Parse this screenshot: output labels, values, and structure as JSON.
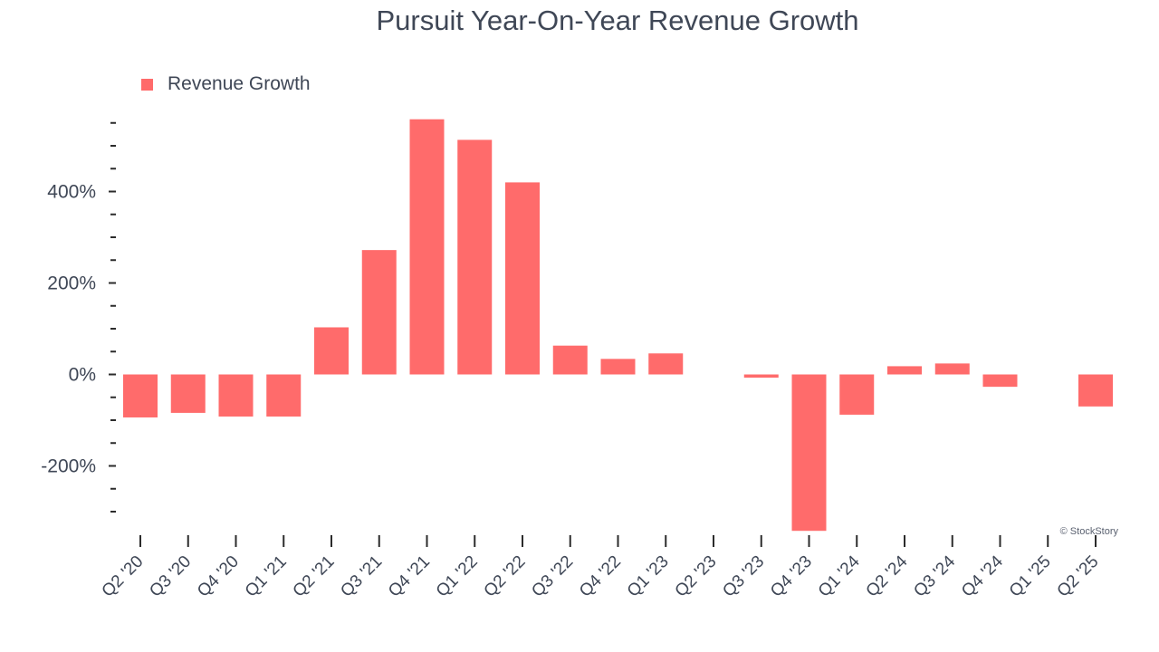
{
  "chart_data": {
    "type": "bar",
    "title": "Pursuit Year-On-Year Revenue Growth",
    "legend": [
      "Revenue Growth"
    ],
    "legend_position": "top-left",
    "xlabel": "",
    "ylabel": "",
    "ylim": [
      -345,
      560
    ],
    "y_ticks": [
      -200,
      0,
      200,
      400
    ],
    "y_tick_labels": [
      "-200%",
      "0%",
      "200%",
      "400%"
    ],
    "y_minor_step": 50,
    "grid": false,
    "categories": [
      "Q2 '20",
      "Q3 '20",
      "Q4 '20",
      "Q1 '21",
      "Q2 '21",
      "Q3 '21",
      "Q4 '21",
      "Q1 '22",
      "Q2 '22",
      "Q3 '22",
      "Q4 '22",
      "Q1 '23",
      "Q2 '23",
      "Q3 '23",
      "Q4 '23",
      "Q1 '24",
      "Q2 '24",
      "Q3 '24",
      "Q4 '24",
      "Q1 '25",
      "Q2 '25"
    ],
    "series": [
      {
        "name": "Revenue Growth",
        "values": [
          -94,
          -84,
          -92,
          -92,
          103,
          272,
          558,
          513,
          420,
          63,
          34,
          46,
          null,
          -7,
          -342,
          -88,
          18,
          24,
          -27,
          null,
          -70
        ]
      }
    ],
    "color": "#ff6b6b",
    "credit": "© StockStory"
  }
}
